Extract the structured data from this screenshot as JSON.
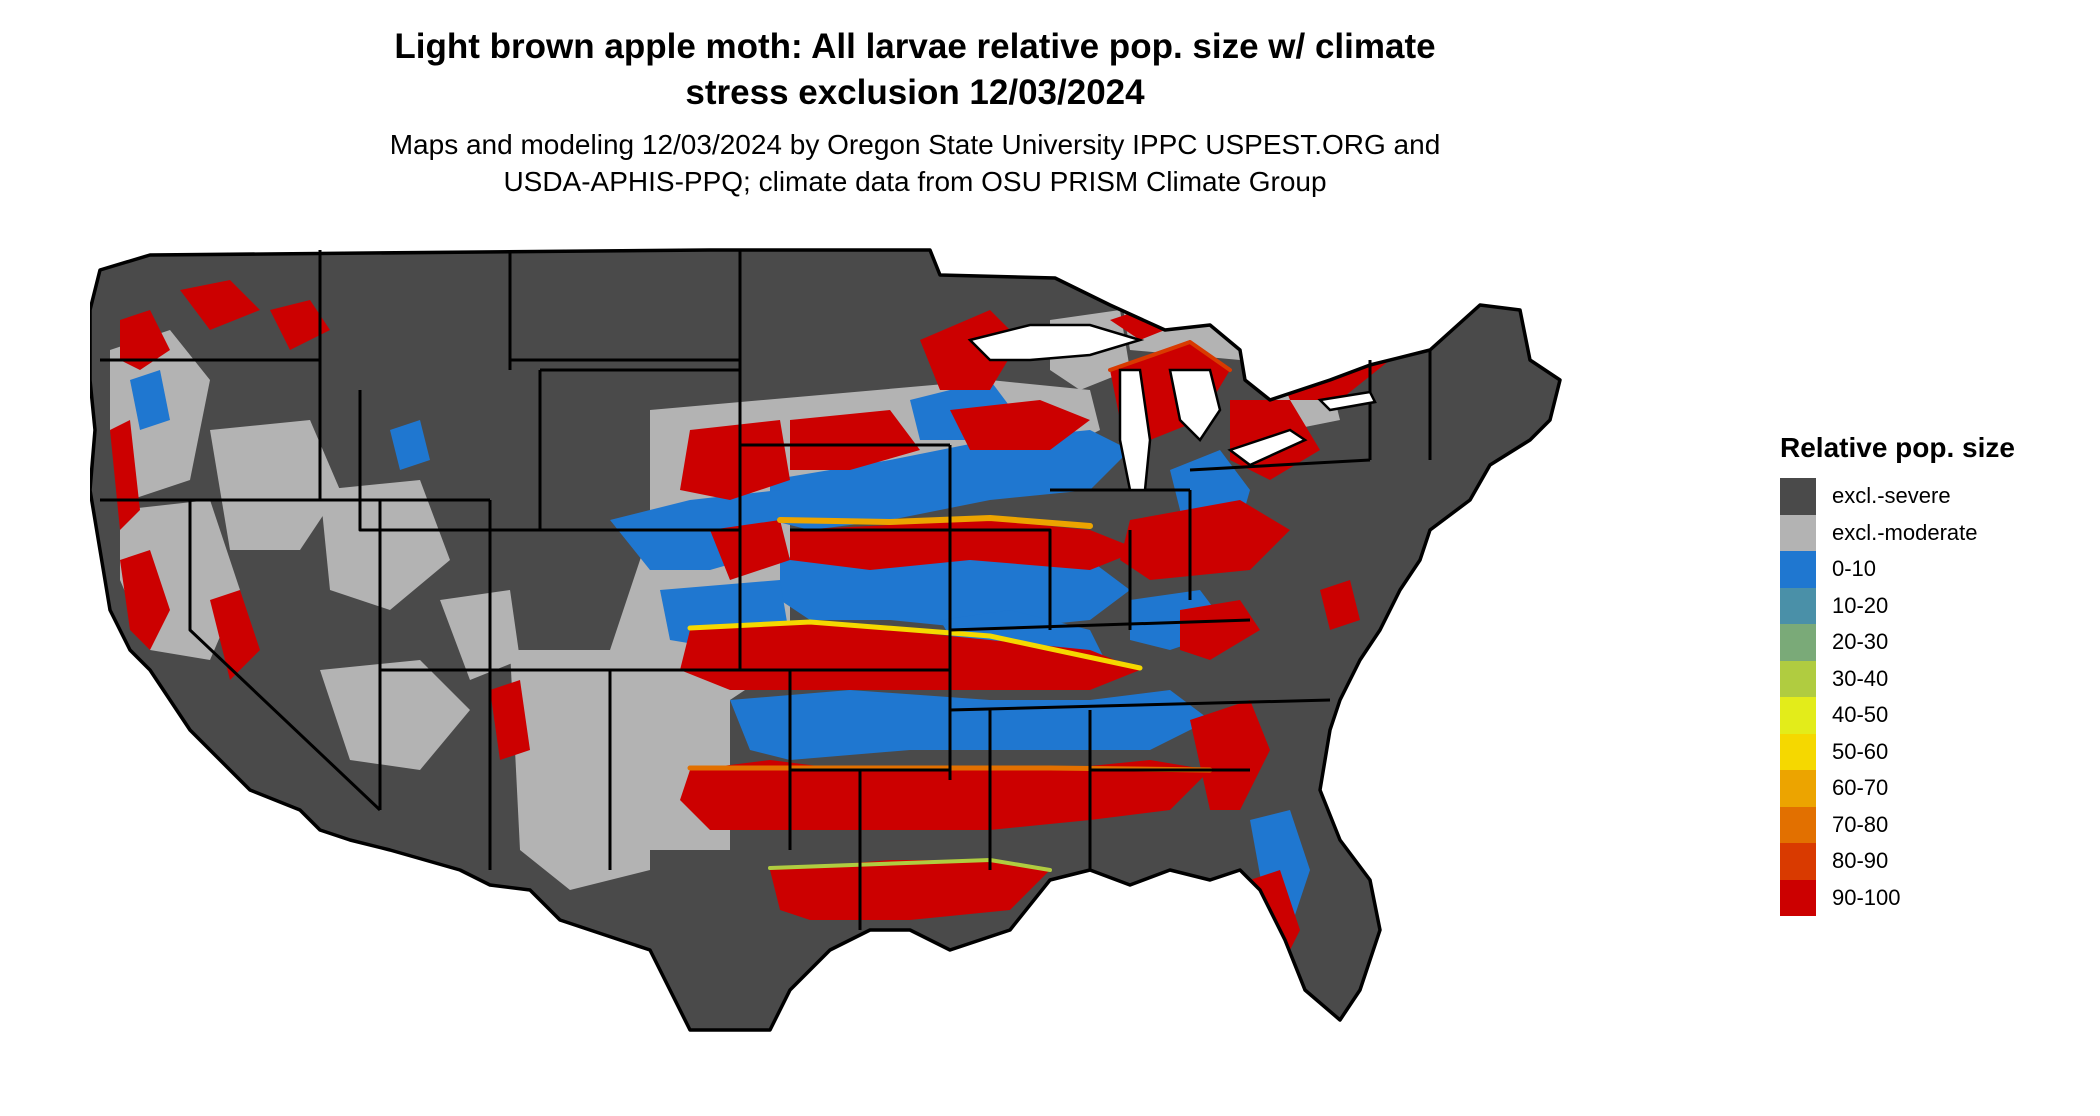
{
  "title_line1": "Light brown apple moth: All larvae relative pop. size w/ climate",
  "title_line2": "stress exclusion 12/03/2024",
  "subtitle_line1": "Maps and modeling 12/03/2024 by Oregon State University IPPC USPEST.ORG and",
  "subtitle_line2": "USDA-APHIS-PPQ; climate data from OSU PRISM Climate Group",
  "legend": {
    "title": "Relative pop. size",
    "items": [
      {
        "label": "excl.-severe",
        "color": "#4a4a4a"
      },
      {
        "label": "excl.-moderate",
        "color": "#b3b3b3"
      },
      {
        "label": "0-10",
        "color": "#1f77d0"
      },
      {
        "label": "10-20",
        "color": "#4a90a8"
      },
      {
        "label": "20-30",
        "color": "#7aaa78"
      },
      {
        "label": "30-40",
        "color": "#b0cc40"
      },
      {
        "label": "40-50",
        "color": "#e3ec1a"
      },
      {
        "label": "50-60",
        "color": "#f5d800"
      },
      {
        "label": "60-70",
        "color": "#eca400"
      },
      {
        "label": "70-80",
        "color": "#e27000"
      },
      {
        "label": "80-90",
        "color": "#d93a00"
      },
      {
        "label": "90-100",
        "color": "#cc0000"
      }
    ]
  }
}
